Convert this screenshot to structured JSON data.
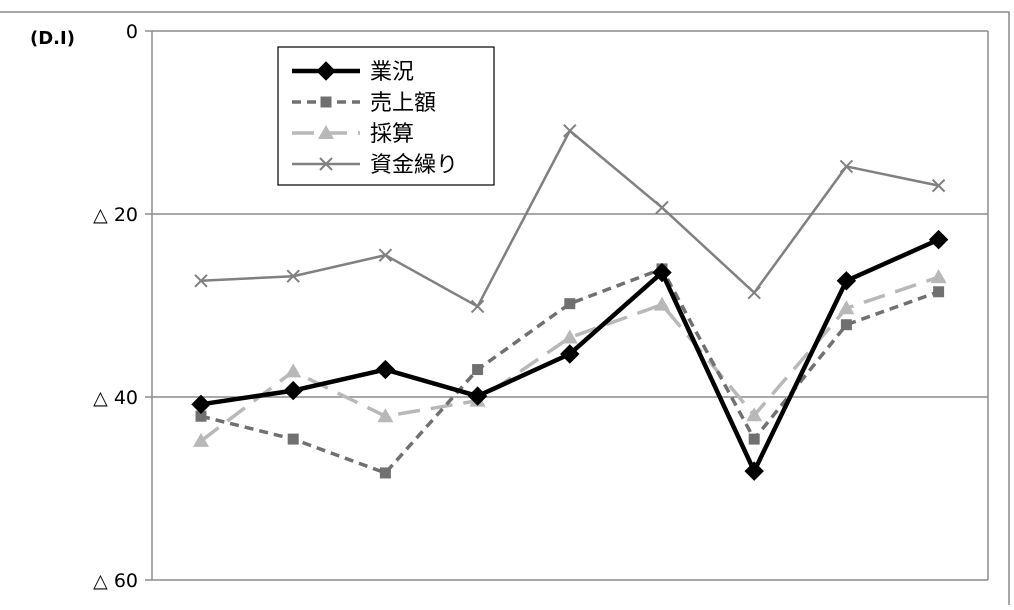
{
  "chart_data": {
    "type": "line",
    "ylabel": "(D.I)",
    "y_display_prefix": "△ ",
    "ylim": [
      -60,
      0
    ],
    "yticks": [
      0,
      -20,
      -40,
      -60
    ],
    "y_tick_labels": [
      "0",
      "△ 20",
      "△ 40",
      "△ 60"
    ],
    "grid": true,
    "x": [
      1,
      2,
      3,
      4,
      5,
      6,
      7,
      8,
      9
    ],
    "legend_position": "top-left",
    "series": [
      {
        "name": "業況",
        "color": "#000000",
        "style": "solid",
        "marker": "diamond",
        "values": [
          -40.8,
          -39.3,
          -37.0,
          -39.9,
          -35.3,
          -26.4,
          -48.1,
          -27.3,
          -22.8
        ]
      },
      {
        "name": "売上額",
        "color": "#707070",
        "style": "dashed",
        "marker": "square",
        "values": [
          -42.1,
          -44.6,
          -48.3,
          -37.0,
          -29.8,
          -26.0,
          -44.6,
          -32.1,
          -28.5
        ]
      },
      {
        "name": "採算",
        "color": "#b8b8b8",
        "style": "long-dash",
        "marker": "triangle",
        "values": [
          -44.8,
          -37.2,
          -42.1,
          -40.4,
          -33.5,
          -29.9,
          -42.0,
          -30.3,
          -26.9
        ]
      },
      {
        "name": "資金繰り",
        "color": "#808080",
        "style": "solid-thin",
        "marker": "x",
        "values": [
          -27.3,
          -26.8,
          -24.5,
          -30.1,
          -10.9,
          -19.3,
          -28.6,
          -14.8,
          -16.9
        ]
      }
    ]
  }
}
